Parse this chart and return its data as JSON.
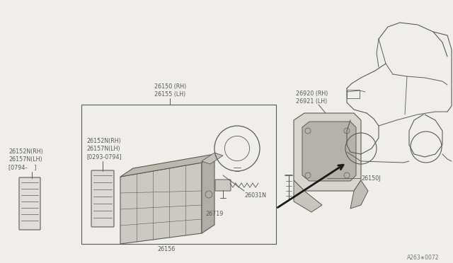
{
  "bg_color": "#f0eeeb",
  "line_color": "#5a5a5a",
  "text_color": "#5a5a5a",
  "font_size": 5.8,
  "labels": {
    "26150_RH": "26150 (RH)",
    "26155_LH": "26155 (LH)",
    "26152N_RH_out": "26152N(RH)",
    "26157N_LH_out": "26157N(LH)",
    "date_out": "[0794-    ]",
    "26152N_RH_in": "26152N(RH)",
    "26157N_LH_in": "26157N(LH)",
    "date_in": "[0293-0794]",
    "26719": "26719",
    "26031N": "26031N",
    "26156": "26156",
    "26920_RH": "26920 (RH)",
    "26921_LH": "26921 (LH)",
    "26150J": "26150J",
    "ref_code": "A263∗0072"
  }
}
